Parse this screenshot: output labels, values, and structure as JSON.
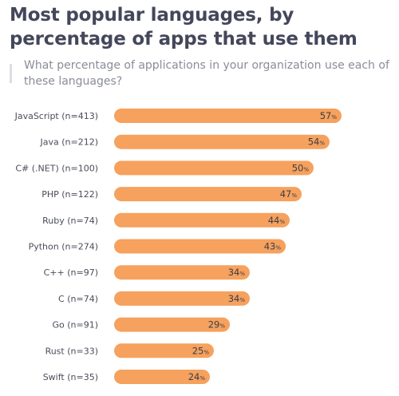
{
  "colors": {
    "bar": "#f6a15d",
    "title": "#44475a",
    "subtitle": "#8a8d99",
    "label": "#4a4d5a"
  },
  "chart_data": {
    "type": "bar",
    "orientation": "horizontal",
    "title": "Most popular languages, by percentage of apps that use them",
    "subtitle": "What percentage of applications in your organization use each of these languages?",
    "categories": [
      "JavaScript (n=413)",
      "Java (n=212)",
      "C# (.NET) (n=100)",
      "PHP (n=122)",
      "Ruby (n=74)",
      "Python (n=274)",
      "C++ (n=97)",
      "C (n=74)",
      "Go (n=91)",
      "Rust (n=33)",
      "Swift (n=35)"
    ],
    "values": [
      57,
      54,
      50,
      47,
      44,
      43,
      34,
      34,
      29,
      25,
      24
    ],
    "value_suffix": "%",
    "xlim": [
      0,
      60
    ],
    "grid": false,
    "legend": "none"
  }
}
